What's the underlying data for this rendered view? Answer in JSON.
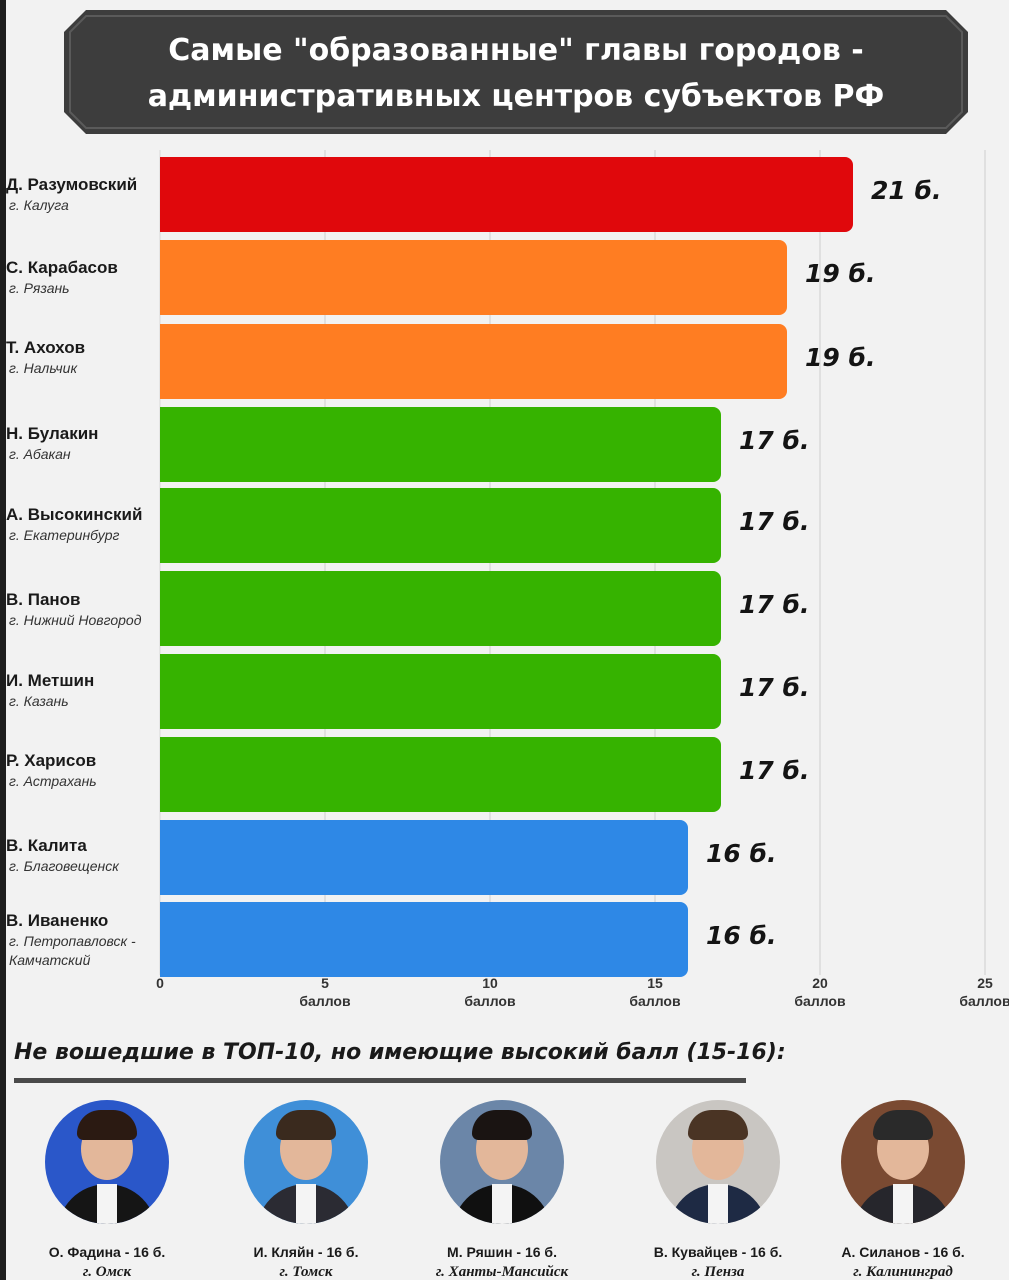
{
  "header": {
    "title": "Самые \"образованные\" главы городов -\nадминистративных центров субъектов РФ"
  },
  "colors": {
    "banner": "#3d3d3d",
    "red": "#e0080c",
    "orange": "#ff7d22",
    "green": "#36b300",
    "blue": "#2e88e6"
  },
  "chart_data": {
    "type": "bar",
    "orientation": "horizontal",
    "categories": [
      {
        "name": "Д. Разумовский",
        "city": "г. Калуга",
        "color": "#e0080c"
      },
      {
        "name": "С. Карабасов",
        "city": "г. Рязань",
        "color": "#ff7d22"
      },
      {
        "name": "Т. Ахохов",
        "city": "г. Нальчик",
        "color": "#ff7d22"
      },
      {
        "name": "Н. Булакин",
        "city": "г. Абакан",
        "color": "#36b300"
      },
      {
        "name": "А. Высокинский",
        "city": "г. Екатеринбург",
        "color": "#36b300"
      },
      {
        "name": "В. Панов",
        "city": "г. Нижний Новгород",
        "color": "#36b300"
      },
      {
        "name": "И. Метшин",
        "city": "г. Казань",
        "color": "#36b300"
      },
      {
        "name": "Р. Харисов",
        "city": "г. Астрахань",
        "color": "#36b300"
      },
      {
        "name": "В. Калита",
        "city": "г. Благовещенск",
        "color": "#2e88e6"
      },
      {
        "name": "В. Иваненко",
        "city": "г. Петропавловск - Камчатский",
        "color": "#2e88e6"
      }
    ],
    "values": [
      21,
      19,
      19,
      17,
      17,
      17,
      17,
      17,
      16,
      16
    ],
    "value_labels": [
      "21 б.",
      "19 б.",
      "19 б.",
      "17 б.",
      "17 б.",
      "17 б.",
      "17 б.",
      "17 б.",
      "16 б.",
      "16 б."
    ],
    "xlim": [
      0,
      25
    ],
    "x_ticks": [
      0,
      5,
      10,
      15,
      20,
      25
    ],
    "x_tick_labels": [
      "0",
      "5\nбаллов",
      "10\nбаллов",
      "15\nбаллов",
      "20\nбаллов",
      "25\nбаллов"
    ],
    "grid": true
  },
  "section": {
    "heading": "Не вошедшие в ТОП-10, но имеющие высокий балл (15-16):"
  },
  "extras": [
    {
      "name": "О. Фадина - 16 б.",
      "city": "г. Омск",
      "bg": "#2a57c9",
      "suit": "#151515",
      "hair": "#2b1a12"
    },
    {
      "name": "И. Кляйн - 16 б.",
      "city": "г. Томск",
      "bg": "#3f8fd8",
      "suit": "#2b2b33",
      "hair": "#3a2a1e"
    },
    {
      "name": "М. Ряшин - 16 б.",
      "city": "г. Ханты-Мансийск",
      "bg": "#6b86a8",
      "suit": "#101010",
      "hair": "#1a1412"
    },
    {
      "name": "В. Кувайцев - 16 б.",
      "city": "г. Пенза",
      "bg": "#c9c6c2",
      "suit": "#1e2a44",
      "hair": "#4a3424"
    },
    {
      "name": "А. Силанов - 16 б.",
      "city": "г. Калининград",
      "bg": "#7a4a32",
      "suit": "#26262c",
      "hair": "#2a2a2a"
    }
  ]
}
